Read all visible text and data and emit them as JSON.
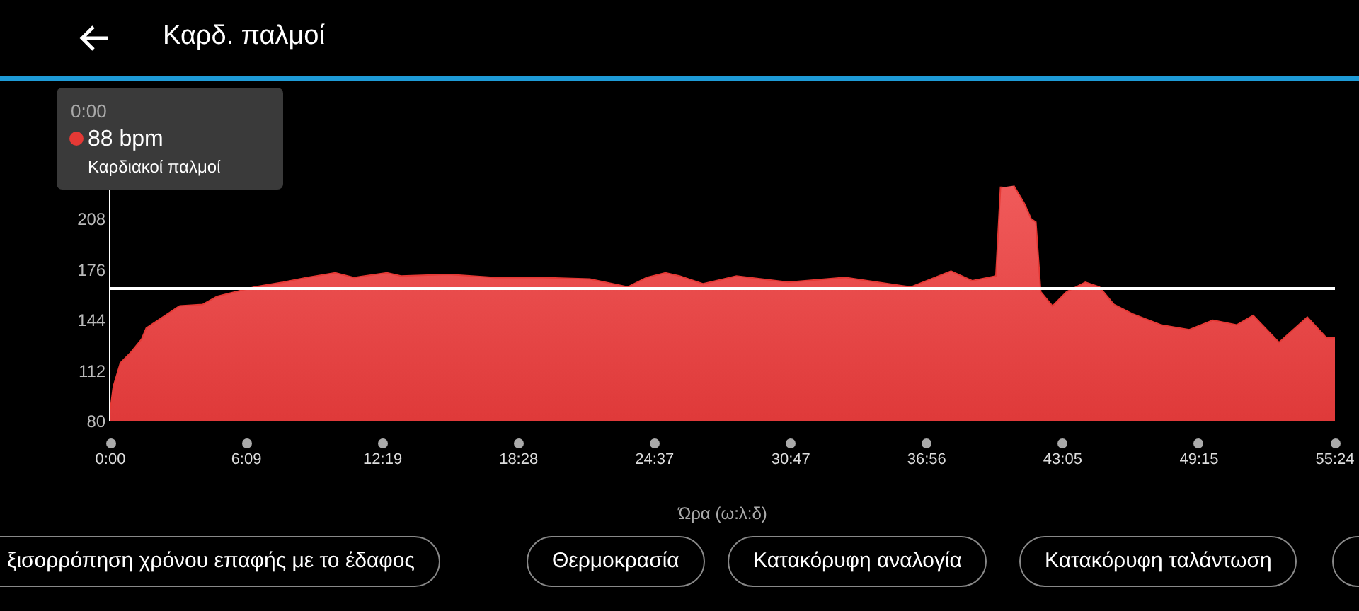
{
  "chart_data": {
    "type": "area",
    "title": "Καρδ. παλμοί",
    "xlabel": "Ώρα (ω:λ:δ)",
    "annotations": [
      "0:00",
      "88 bpm",
      "Καρδιακοί παλμοί",
      "ξισορρόπηση χρόνου επαφής με το έδαφος",
      "Θερμοκρασία",
      "Κατακόρυφη αναλογία",
      "Κατακόρυφη ταλάντωση"
    ],
    "x": [
      0,
      0.13,
      0.45,
      0.88,
      1.41,
      1.62,
      2.48,
      3.12,
      4.18,
      4.82,
      5.68,
      6.53,
      7.82,
      8.88,
      10.17,
      11.02,
      12.51,
      13.15,
      15.29,
      17.42,
      19.56,
      21.69,
      23.4,
      24.26,
      25.11,
      25.75,
      26.82,
      28.32,
      30.67,
      33.23,
      36.21,
      38.03,
      38.99,
      40.06,
      40.27,
      40.36,
      40.6,
      40.87,
      41.34,
      41.66,
      41.87,
      42.09,
      42.62,
      43.26,
      44.11,
      44.75,
      45.4,
      46.25,
      47.53,
      48.81,
      49.88,
      50.95,
      51.7,
      52.87,
      54.15,
      55.01,
      55.4
    ],
    "series": [
      {
        "color": "#e53935",
        "values": [
          88,
          102,
          117,
          123,
          132,
          139,
          147,
          153,
          154,
          159,
          162,
          165,
          168,
          171,
          174,
          171,
          174,
          172,
          173,
          171,
          171,
          170,
          165,
          171,
          174,
          172,
          167,
          172,
          168,
          171,
          165,
          175,
          169,
          172,
          228,
          228,
          null,
          229,
          218,
          208,
          206,
          162,
          153,
          162,
          168,
          165,
          154,
          148,
          141,
          138,
          144,
          141,
          147,
          130,
          146,
          133,
          133
        ]
      }
    ],
    "xlim": [
      0,
      55.4
    ],
    "xticks": [
      {
        "value": 0,
        "label": "0:00"
      },
      {
        "value": 6.15,
        "label": "6:09"
      },
      {
        "value": 12.317,
        "label": "12:19"
      },
      {
        "value": 18.467,
        "label": "18:28"
      },
      {
        "value": 24.617,
        "label": "24:37"
      },
      {
        "value": 30.783,
        "label": "30:47"
      },
      {
        "value": 36.933,
        "label": "36:56"
      },
      {
        "value": 43.083,
        "label": "43:05"
      },
      {
        "value": 49.25,
        "label": "49:15"
      },
      {
        "value": 55.4,
        "label": "55:24"
      }
    ],
    "ylim": [
      80,
      240
    ],
    "yticks": [
      80,
      112,
      144,
      176,
      208
    ],
    "ref_lines": [
      {
        "axis": "y",
        "value": 164,
        "color": "#ffffff"
      }
    ],
    "grid": false
  }
}
